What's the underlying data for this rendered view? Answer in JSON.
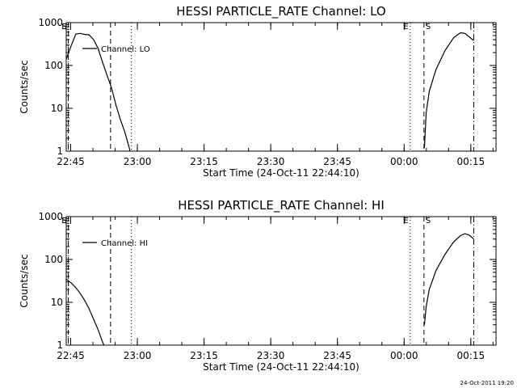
{
  "footer_timestamp": "24-Oct-2011 19:20",
  "chart_data": [
    {
      "type": "line",
      "title": "HESSI PARTICLE_RATE Channel: LO",
      "xlabel": "Start Time (24-Oct-11 22:44:10)",
      "ylabel": "Counts/sec",
      "yscale": "log",
      "xlim": [
        -0.1667,
        96.5
      ],
      "ylim": [
        1,
        1000
      ],
      "x_ticks": [
        0.8333,
        15.8333,
        30.8333,
        45.8333,
        60.8333,
        75.8333,
        90.8333
      ],
      "x_tick_labels": [
        "22:45",
        "23:00",
        "23:15",
        "23:30",
        "23:45",
        "00:00",
        "00:15"
      ],
      "y_ticks": [
        1,
        10,
        100,
        1000
      ],
      "y_tick_labels": [
        "1",
        "10",
        "100",
        "1000"
      ],
      "legend": {
        "label": "Channel: LO",
        "placement": "top-left"
      },
      "markers": [
        {
          "label": "E",
          "x": 0.3,
          "style": "dotted",
          "label_side": "left"
        },
        {
          "label": "S",
          "x": 0.3,
          "style": "dashed",
          "label_side": "left"
        },
        {
          "label": "",
          "x": 9.8,
          "style": "dashed",
          "label_side": ""
        },
        {
          "label": "",
          "x": 14.5,
          "style": "dotted",
          "label_side": ""
        },
        {
          "label": "E",
          "x": 77.2,
          "style": "dotted",
          "label_side": "left"
        },
        {
          "label": "S",
          "x": 80.3,
          "style": "dashed",
          "label_side": "right"
        },
        {
          "label": "",
          "x": 91.5,
          "style": "dashdot",
          "label_side": ""
        }
      ],
      "series": [
        {
          "x": [
            -0.1667,
            1,
            2,
            3,
            4,
            5,
            6,
            7,
            8,
            9,
            10,
            11,
            12,
            13,
            14,
            14.3
          ],
          "y": [
            140,
            300,
            540,
            560,
            530,
            520,
            400,
            250,
            120,
            60,
            30,
            12,
            5.5,
            2.8,
            1.2,
            0.9
          ]
        },
        {
          "x": [
            80.4,
            80.8,
            81.5,
            83,
            85,
            87,
            88.5,
            89.5,
            90.3,
            91,
            91.5
          ],
          "y": [
            1.2,
            8,
            25,
            80,
            220,
            450,
            580,
            560,
            480,
            420,
            380
          ]
        }
      ]
    },
    {
      "type": "line",
      "title": "HESSI PARTICLE_RATE Channel: HI",
      "xlabel": "Start Time (24-Oct-11 22:44:10)",
      "ylabel": "Counts/sec",
      "yscale": "log",
      "xlim": [
        -0.1667,
        96.5
      ],
      "ylim": [
        1,
        1000
      ],
      "x_ticks": [
        0.8333,
        15.8333,
        30.8333,
        45.8333,
        60.8333,
        75.8333,
        90.8333
      ],
      "x_tick_labels": [
        "22:45",
        "23:00",
        "23:15",
        "23:30",
        "23:45",
        "00:00",
        "00:15"
      ],
      "y_ticks": [
        1,
        10,
        100,
        1000
      ],
      "y_tick_labels": [
        "1",
        "10",
        "100",
        "1000"
      ],
      "legend": {
        "label": "Channel: HI",
        "placement": "top-left"
      },
      "markers": [
        {
          "label": "E",
          "x": 0.3,
          "style": "dotted",
          "label_side": "left"
        },
        {
          "label": "S",
          "x": 0.3,
          "style": "dashed",
          "label_side": "left"
        },
        {
          "label": "",
          "x": 9.8,
          "style": "dashed",
          "label_side": ""
        },
        {
          "label": "",
          "x": 14.5,
          "style": "dotted",
          "label_side": ""
        },
        {
          "label": "E",
          "x": 77.2,
          "style": "dotted",
          "label_side": "left"
        },
        {
          "label": "S",
          "x": 80.3,
          "style": "dashed",
          "label_side": "right"
        },
        {
          "label": "",
          "x": 91.5,
          "style": "dashdot",
          "label_side": ""
        }
      ],
      "series": [
        {
          "x": [
            -0.1667,
            1,
            2,
            3,
            4,
            5,
            6,
            7,
            8,
            8.5
          ],
          "y": [
            35,
            28,
            22,
            16,
            11,
            7,
            4,
            2.3,
            1.2,
            0.9
          ]
        },
        {
          "x": [
            80.4,
            80.8,
            81.5,
            83,
            85,
            87,
            88.5,
            89.5,
            90.5,
            91.5
          ],
          "y": [
            3,
            8,
            20,
            55,
            130,
            260,
            360,
            400,
            370,
            300
          ]
        }
      ]
    }
  ]
}
